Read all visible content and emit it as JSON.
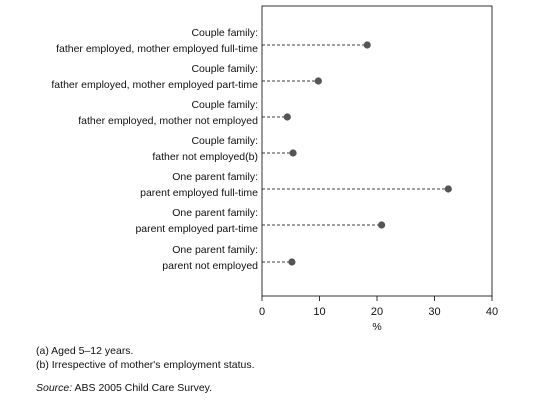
{
  "chart_data": {
    "type": "scatter",
    "categories": [
      [
        "Couple family:",
        "father employed, mother employed full-time"
      ],
      [
        "Couple family:",
        "father employed, mother employed part-time"
      ],
      [
        "Couple family:",
        "father employed, mother not employed"
      ],
      [
        "Couple family:",
        "father not employed(b)"
      ],
      [
        "One parent family:",
        "parent employed full-time"
      ],
      [
        "One parent family:",
        "parent employed part-time"
      ],
      [
        "One parent family:",
        "parent not employed"
      ]
    ],
    "values": [
      18.3,
      9.8,
      4.4,
      5.4,
      32.4,
      20.8,
      5.2
    ],
    "xlabel": "%",
    "xlim": [
      0,
      40
    ],
    "xticks": [
      "0",
      "10",
      "20",
      "30",
      "40"
    ],
    "grid": false,
    "marker_color": "#555555"
  },
  "footnotes": [
    "(a) Aged 5–12 years.",
    "(b) Irrespective of mother's employment status."
  ],
  "source": {
    "prefix": "Source:",
    "text": "ABS 2005 Child Care Survey."
  }
}
